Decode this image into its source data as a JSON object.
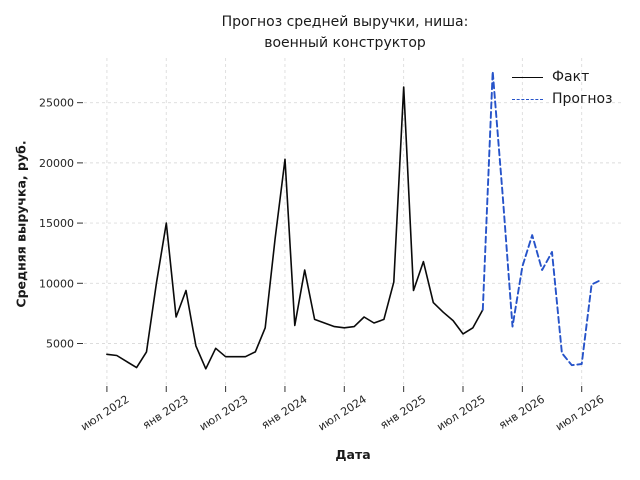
{
  "title": {
    "line1": "Прогноз средней выручки, ниша:",
    "line2": "военный конструктор"
  },
  "axes": {
    "xlabel": "Дата",
    "ylabel": "Средняя выручка, руб."
  },
  "legend": {
    "position": "upper right",
    "items": [
      {
        "label": "Факт",
        "color": "#0a0a0a",
        "line_style": "solid"
      },
      {
        "label": "Прогноз",
        "color": "#2653c9",
        "line_style": "dashed"
      }
    ]
  },
  "colors": {
    "fact_line": "#0a0a0a",
    "forecast_line": "#2653c9",
    "gridline": "#dcdcdc",
    "tick_label": "#262626",
    "background": "#ffffff"
  },
  "chart_data": {
    "type": "line",
    "title": "Прогноз средней выручки, ниша: военный конструктор",
    "xlabel": "Дата",
    "ylabel": "Средняя выручка, руб.",
    "grid": true,
    "gridline_style": "dashed",
    "ylim": [
      1470,
      28710
    ],
    "yticks": [
      5000,
      10000,
      15000,
      20000,
      25000
    ],
    "x_tick_labels": [
      "июл 2022",
      "янв 2023",
      "июл 2023",
      "янв 2024",
      "июл 2024",
      "янв 2025",
      "июл 2025",
      "янв 2026",
      "июл 2026"
    ],
    "x_tick_month_index": [
      0,
      6,
      12,
      18,
      24,
      30,
      36,
      42,
      48
    ],
    "series": [
      {
        "name": "Факт",
        "style": "solid",
        "color": "#0a0a0a",
        "start_month_index": 0,
        "x": [
          "2022-07",
          "2022-08",
          "2022-09",
          "2022-10",
          "2022-11",
          "2022-12",
          "2023-01",
          "2023-02",
          "2023-03",
          "2023-04",
          "2023-05",
          "2023-06",
          "2023-07",
          "2023-08",
          "2023-09",
          "2023-10",
          "2023-11",
          "2023-12",
          "2024-01",
          "2024-02",
          "2024-03",
          "2024-04",
          "2024-05",
          "2024-06",
          "2024-07",
          "2024-08",
          "2024-09",
          "2024-10",
          "2024-11",
          "2024-12",
          "2025-01",
          "2025-02",
          "2025-03",
          "2025-04",
          "2025-05",
          "2025-06",
          "2025-07",
          "2025-08",
          "2025-09"
        ],
        "values": [
          4100,
          4000,
          3500,
          3000,
          4300,
          10000,
          15000,
          7200,
          9400,
          4800,
          2900,
          4600,
          3900,
          3900,
          3900,
          4300,
          6300,
          13700,
          20300,
          6500,
          11100,
          7000,
          6700,
          6400,
          6300,
          6400,
          7200,
          6700,
          7000,
          10100,
          26300,
          9400,
          11800,
          8400,
          7600,
          6900,
          5800,
          6300,
          7800
        ]
      },
      {
        "name": "Прогноз",
        "style": "dashed",
        "color": "#2653c9",
        "start_month_index": 38,
        "x": [
          "2025-09",
          "2025-10",
          "2025-11",
          "2025-12",
          "2026-01",
          "2026-02",
          "2026-03",
          "2026-04",
          "2026-05",
          "2026-06",
          "2026-07",
          "2026-08",
          "2026-09"
        ],
        "values": [
          7800,
          27600,
          17400,
          6400,
          11400,
          14000,
          11100,
          12600,
          4200,
          3200,
          3300,
          9900,
          10300
        ]
      }
    ]
  }
}
